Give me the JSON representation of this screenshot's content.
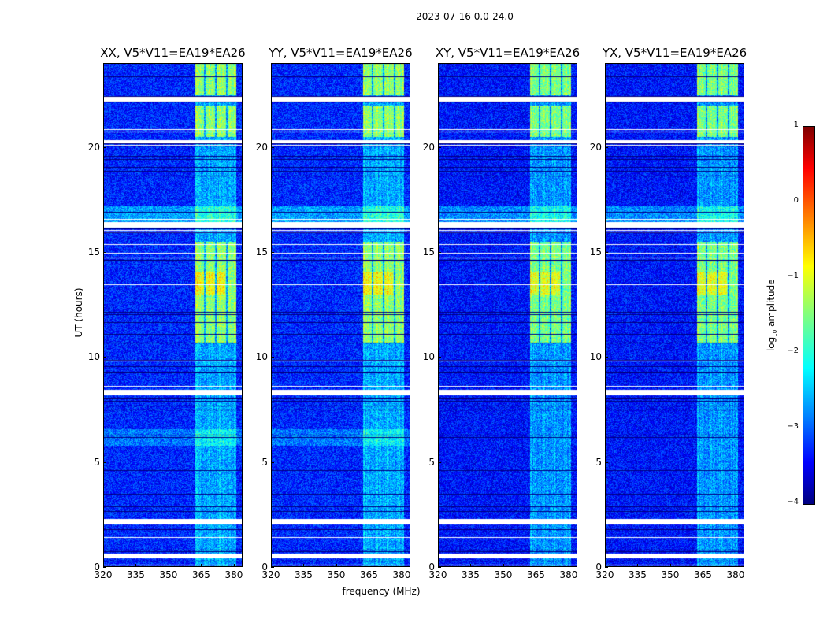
{
  "title": "2023-07-16 0.0-24.0",
  "chart_data": {
    "type": "heatmap",
    "title": "2023-07-16 0.0-24.0",
    "xlabel": "frequency (MHz)",
    "ylabel": "UT (hours)",
    "xlim": [
      320,
      384
    ],
    "ylim": [
      0,
      24
    ],
    "xticks": [
      "320",
      "335",
      "350",
      "365",
      "380"
    ],
    "xtick_values": [
      320,
      335,
      350,
      365,
      380
    ],
    "yticks": [
      "0",
      "5",
      "10",
      "15",
      "20"
    ],
    "ytick_values": [
      0,
      5,
      10,
      15,
      20
    ],
    "panels": [
      {
        "title": "XX, V5*V11=EA19*EA26"
      },
      {
        "title": "YY, V5*V11=EA19*EA26"
      },
      {
        "title": "XY, V5*V11=EA19*EA26"
      },
      {
        "title": "YX, V5*V11=EA19*EA26"
      }
    ],
    "background_level_log10": -3.2,
    "rfi_band_mhz": [
      362,
      381
    ],
    "rfi_strong_intervals_hours": [
      [
        22.5,
        24
      ],
      [
        20.5,
        22
      ],
      [
        10.7,
        15.5
      ]
    ],
    "rfi_peak_interval_hours": [
      13,
      14.1
    ],
    "flagged_intervals_hours": [
      [
        22.2,
        22.4
      ],
      [
        20.2,
        20.35
      ],
      [
        16.2,
        16.45
      ],
      [
        8.2,
        8.45
      ],
      [
        2.05,
        2.3
      ],
      [
        0.45,
        0.65
      ]
    ],
    "colorbar": {
      "label": "log10 amplitude",
      "range": [
        -4,
        1
      ],
      "ticks": [
        "1",
        "0",
        "−1",
        "−2",
        "−3",
        "−4"
      ],
      "tick_values": [
        1,
        0,
        -1,
        -2,
        -3,
        -4
      ],
      "colormap": "jet"
    }
  }
}
